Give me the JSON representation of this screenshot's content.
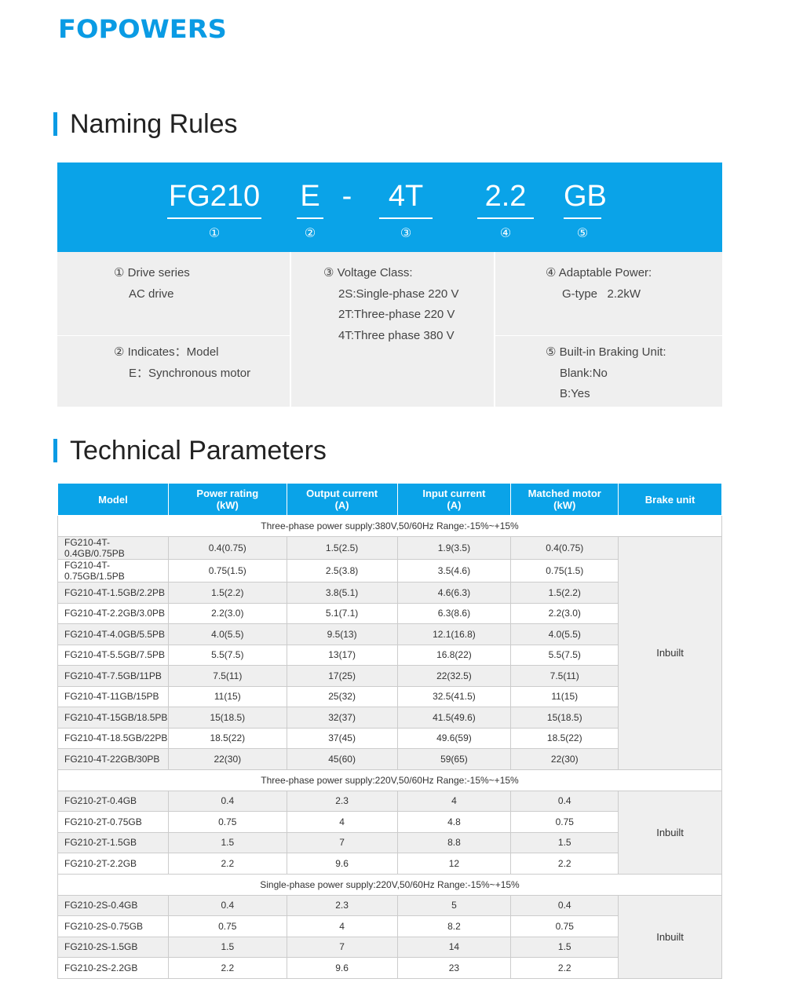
{
  "brand": {
    "logo": "FOPOWERS",
    "color": "#0a9be4"
  },
  "naming": {
    "title": "Naming Rules",
    "segments": [
      {
        "code": "FG210",
        "num": "①"
      },
      {
        "code": "E",
        "num": "②"
      },
      {
        "code": "-",
        "num": ""
      },
      {
        "code": "4T",
        "num": "③"
      },
      {
        "code": "2.2",
        "num": "④"
      },
      {
        "code": "GB",
        "num": "⑤"
      }
    ],
    "p1": [
      "① Drive series",
      "AC drive"
    ],
    "p2": [
      "② Indicates：Model",
      "E：Synchronous motor"
    ],
    "p3": [
      "③ Voltage Class:",
      "2S:Single-phase 220 V",
      "2T:Three-phase 220 V",
      "4T:Three phase 380 V"
    ],
    "p4": [
      "④ Adaptable Power:",
      "G-type   2.2kW"
    ],
    "p5": [
      "⑤ Built-in Braking Unit:",
      "Blank:No",
      "B:Yes"
    ]
  },
  "tech": {
    "title": "Technical Parameters",
    "headers": [
      [
        "Model",
        ""
      ],
      [
        "Power rating",
        "(kW)"
      ],
      [
        "Output current",
        "(A)"
      ],
      [
        "Input current",
        "(A)"
      ],
      [
        "Matched motor",
        "(kW)"
      ],
      [
        "Brake unit",
        ""
      ]
    ],
    "sections": [
      {
        "label": "Three-phase power supply:380V,50/60Hz  Range:-15%~+15%",
        "brake": "Inbuilt",
        "rows": [
          [
            "FG210-4T-0.4GB/0.75PB",
            "0.4(0.75)",
            "1.5(2.5)",
            "1.9(3.5)",
            "0.4(0.75)"
          ],
          [
            "FG210-4T-0.75GB/1.5PB",
            "0.75(1.5)",
            "2.5(3.8)",
            "3.5(4.6)",
            "0.75(1.5)"
          ],
          [
            "FG210-4T-1.5GB/2.2PB",
            "1.5(2.2)",
            "3.8(5.1)",
            "4.6(6.3)",
            "1.5(2.2)"
          ],
          [
            "FG210-4T-2.2GB/3.0PB",
            "2.2(3.0)",
            "5.1(7.1)",
            "6.3(8.6)",
            "2.2(3.0)"
          ],
          [
            "FG210-4T-4.0GB/5.5PB",
            "4.0(5.5)",
            "9.5(13)",
            "12.1(16.8)",
            "4.0(5.5)"
          ],
          [
            "FG210-4T-5.5GB/7.5PB",
            "5.5(7.5)",
            "13(17)",
            "16.8(22)",
            "5.5(7.5)"
          ],
          [
            "FG210-4T-7.5GB/11PB",
            "7.5(11)",
            "17(25)",
            "22(32.5)",
            "7.5(11)"
          ],
          [
            "FG210-4T-11GB/15PB",
            "11(15)",
            "25(32)",
            "32.5(41.5)",
            "11(15)"
          ],
          [
            "FG210-4T-15GB/18.5PB",
            "15(18.5)",
            "32(37)",
            "41.5(49.6)",
            "15(18.5)"
          ],
          [
            "FG210-4T-18.5GB/22PB",
            "18.5(22)",
            "37(45)",
            "49.6(59)",
            "18.5(22)"
          ],
          [
            "FG210-4T-22GB/30PB",
            "22(30)",
            "45(60)",
            "59(65)",
            "22(30)"
          ]
        ]
      },
      {
        "label": "Three-phase power supply:220V,50/60Hz  Range:-15%~+15%",
        "brake": "Inbuilt",
        "rows": [
          [
            "FG210-2T-0.4GB",
            "0.4",
            "2.3",
            "4",
            "0.4"
          ],
          [
            "FG210-2T-0.75GB",
            "0.75",
            "4",
            "4.8",
            "0.75"
          ],
          [
            "FG210-2T-1.5GB",
            "1.5",
            "7",
            "8.8",
            "1.5"
          ],
          [
            "FG210-2T-2.2GB",
            "2.2",
            "9.6",
            "12",
            "2.2"
          ]
        ]
      },
      {
        "label": "Single-phase power supply:220V,50/60Hz  Range:-15%~+15%",
        "brake": "Inbuilt",
        "rows": [
          [
            "FG210-2S-0.4GB",
            "0.4",
            "2.3",
            "5",
            "0.4"
          ],
          [
            "FG210-2S-0.75GB",
            "0.75",
            "4",
            "8.2",
            "0.75"
          ],
          [
            "FG210-2S-1.5GB",
            "1.5",
            "7",
            "14",
            "1.5"
          ],
          [
            "FG210-2S-2.2GB",
            "2.2",
            "9.6",
            "23",
            "2.2"
          ]
        ]
      }
    ]
  }
}
